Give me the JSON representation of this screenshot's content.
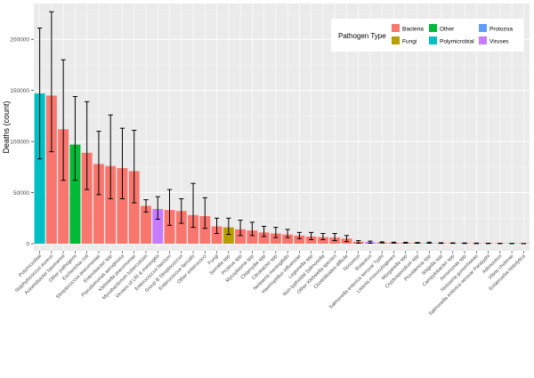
{
  "chart_data": {
    "type": "bar",
    "title": "",
    "xlabel": "",
    "ylabel": "Deaths (count)",
    "ylim": [
      0,
      235000
    ],
    "yticks": [
      0,
      50000,
      100000,
      150000,
      200000
    ],
    "grid": true,
    "legend": {
      "title": "Pathogen Type",
      "placement": "top-right",
      "entries": [
        {
          "name": "Bacteria",
          "color": "#F8766D"
        },
        {
          "name": "Other",
          "color": "#00BA38"
        },
        {
          "name": "Protozoa",
          "color": "#619CFF"
        },
        {
          "name": "Fungi",
          "color": "#B79F00"
        },
        {
          "name": "Polymicrobial",
          "color": "#00BFC4"
        },
        {
          "name": "Viruses",
          "color": "#C77CFF"
        }
      ]
    },
    "bars": [
      {
        "category": "Polymicrobial",
        "value": 147000,
        "low": 83000,
        "high": 211000,
        "type": "Polymicrobial"
      },
      {
        "category": "Staphylococcus aureus",
        "value": 145000,
        "low": 90000,
        "high": 227000,
        "type": "Bacteria"
      },
      {
        "category": "Acinetobacter baumannii",
        "value": 112000,
        "low": 62000,
        "high": 180000,
        "type": "Bacteria"
      },
      {
        "category": "Other pathogens",
        "value": 97000,
        "low": 62000,
        "high": 144000,
        "type": "Other"
      },
      {
        "category": "Escherichia coli",
        "value": 89000,
        "low": 53000,
        "high": 139000,
        "type": "Bacteria"
      },
      {
        "category": "Streptococcus pneumoniae",
        "value": 78000,
        "low": 48000,
        "high": 110000,
        "type": "Bacteria"
      },
      {
        "category": "Enterobacter spp",
        "value": 76000,
        "low": 44000,
        "high": 126000,
        "type": "Bacteria"
      },
      {
        "category": "Pseudomonas aeruginosa",
        "value": 74000,
        "low": 44000,
        "high": 113000,
        "type": "Bacteria"
      },
      {
        "category": "Klebsiella pneumoniae",
        "value": 71000,
        "low": 40000,
        "high": 111000,
        "type": "Bacteria"
      },
      {
        "category": "Mycobacterium tuberculosis",
        "value": 37000,
        "low": 31000,
        "high": 43000,
        "type": "Bacteria"
      },
      {
        "category": "Viruses of LRI & meningitis",
        "value": 34000,
        "low": 24000,
        "high": 46000,
        "type": "Viruses"
      },
      {
        "category": "Enterococcus faecium",
        "value": 33000,
        "low": 18000,
        "high": 53000,
        "type": "Bacteria"
      },
      {
        "category": "Group B Streptococcus",
        "value": 32000,
        "low": 20000,
        "high": 44000,
        "type": "Bacteria"
      },
      {
        "category": "Enterococcus faecalis",
        "value": 28000,
        "low": 16000,
        "high": 59000,
        "type": "Bacteria"
      },
      {
        "category": "Other enterococci",
        "value": 27000,
        "low": 15000,
        "high": 45000,
        "type": "Bacteria"
      },
      {
        "category": "Fungi",
        "value": 17000,
        "low": 10000,
        "high": 25000,
        "type": "Bacteria"
      },
      {
        "category": "Serratia spp",
        "value": 16000,
        "low": 9000,
        "high": 25000,
        "type": "Fungi"
      },
      {
        "category": "Proteus spp",
        "value": 14000,
        "low": 8000,
        "high": 23000,
        "type": "Bacteria"
      },
      {
        "category": "Mycoplasma spp",
        "value": 13000,
        "low": 8000,
        "high": 21000,
        "type": "Bacteria"
      },
      {
        "category": "Chlamydia spp",
        "value": 11000,
        "low": 7000,
        "high": 17000,
        "type": "Bacteria"
      },
      {
        "category": "Citrobacter spp",
        "value": 10000,
        "low": 6000,
        "high": 16000,
        "type": "Bacteria"
      },
      {
        "category": "Neisseria meningitidis",
        "value": 9000,
        "low": 6000,
        "high": 14000,
        "type": "Bacteria"
      },
      {
        "category": "Haemophilus influenzae",
        "value": 8000,
        "low": 5000,
        "high": 11000,
        "type": "Bacteria"
      },
      {
        "category": "Legionella spp",
        "value": 7000,
        "low": 4000,
        "high": 11000,
        "type": "Bacteria"
      },
      {
        "category": "Non-typhoidal Salmonella",
        "value": 6500,
        "low": 4000,
        "high": 10000,
        "type": "Bacteria"
      },
      {
        "category": "Other Klebsiella species",
        "value": 6000,
        "low": 3000,
        "high": 10000,
        "type": "Bacteria"
      },
      {
        "category": "Clostridioides difficile",
        "value": 5000,
        "low": 2000,
        "high": 8000,
        "type": "Bacteria"
      },
      {
        "category": "Norovirus",
        "value": 2000,
        "low": 500,
        "high": 3000,
        "type": "Bacteria"
      },
      {
        "category": "Rotavirus",
        "value": 1500,
        "low": 500,
        "high": 2500,
        "type": "Viruses"
      },
      {
        "category": "Salmonella enterica serovar Typhi",
        "value": 1200,
        "low": 800,
        "high": 1800,
        "type": "Bacteria"
      },
      {
        "category": "Listeria monocytogenes",
        "value": 1000,
        "low": 600,
        "high": 1500,
        "type": "Bacteria"
      },
      {
        "category": "Morganella spp",
        "value": 900,
        "low": 500,
        "high": 1400,
        "type": "Bacteria"
      },
      {
        "category": "Cryptosporidium spp",
        "value": 800,
        "low": 500,
        "high": 1200,
        "type": "Bacteria"
      },
      {
        "category": "Providencia spp",
        "value": 700,
        "low": 400,
        "high": 1500,
        "type": "Protozoa"
      },
      {
        "category": "Shigella spp",
        "value": 600,
        "low": 300,
        "high": 900,
        "type": "Bacteria"
      },
      {
        "category": "Campylobacter spp",
        "value": 500,
        "low": 300,
        "high": 800,
        "type": "Bacteria"
      },
      {
        "category": "Aeromonas spp",
        "value": 400,
        "low": 200,
        "high": 700,
        "type": "Bacteria"
      },
      {
        "category": "Neisseria gonorrhoeae",
        "value": 300,
        "low": 100,
        "high": 600,
        "type": "Bacteria"
      },
      {
        "category": "Salmonella enterica serovar Paratyphi",
        "value": 250,
        "low": 100,
        "high": 500,
        "type": "Bacteria"
      },
      {
        "category": "Adenovirus",
        "value": 200,
        "low": 100,
        "high": 400,
        "type": "Bacteria"
      },
      {
        "category": "Vibrio cholerae",
        "value": 150,
        "low": 50,
        "high": 300,
        "type": "Bacteria"
      },
      {
        "category": "Entamoeba histolytica",
        "value": 100,
        "low": 50,
        "high": 200,
        "type": "Bacteria"
      }
    ]
  }
}
